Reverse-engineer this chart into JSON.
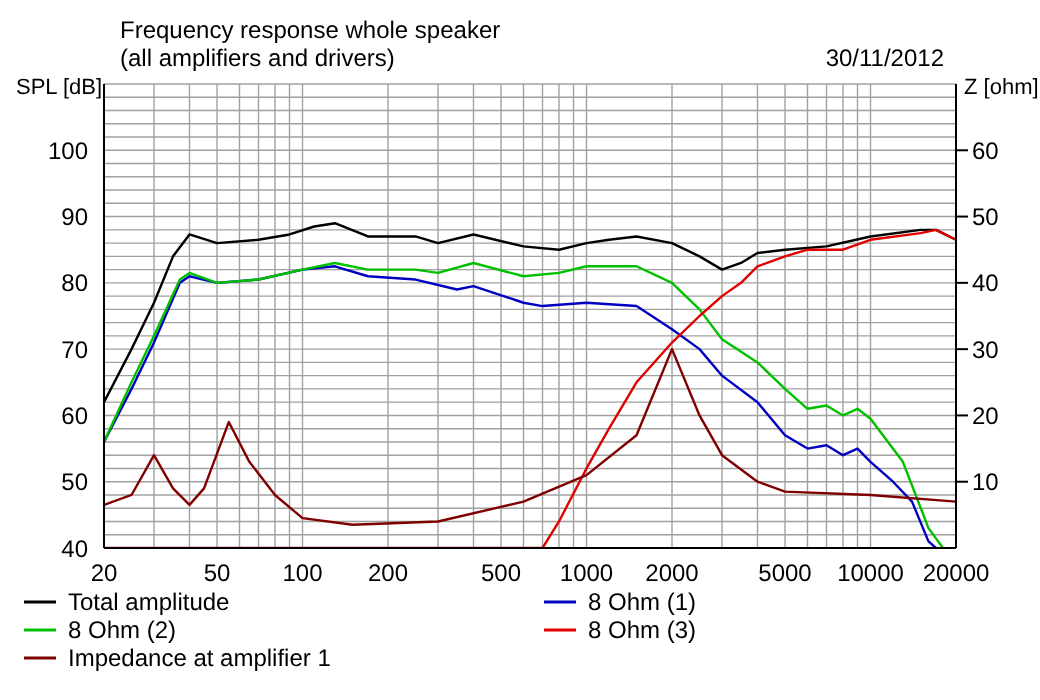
{
  "chart_data": {
    "type": "line",
    "title": "Frequency response whole speaker",
    "subtitle": "(all amplifiers and drivers)",
    "annotations": [
      "30/11/2012"
    ],
    "ylabel": "SPL [dB]",
    "y2label": "Z [ohm]",
    "log": "x",
    "grid": true,
    "legend": "bottom",
    "marker": "none",
    "line_style": "solid",
    "xlim": [
      20,
      20000
    ],
    "xticks": [
      20,
      {
        "value": 30,
        "label": null
      },
      {
        "value": 40,
        "label": null
      },
      50,
      {
        "value": 60,
        "label": null
      },
      {
        "value": 70,
        "label": null
      },
      {
        "value": 80,
        "label": null
      },
      {
        "value": 90,
        "label": null
      },
      100,
      200,
      {
        "value": 300,
        "label": null
      },
      {
        "value": 400,
        "label": null
      },
      500,
      {
        "value": 600,
        "label": null
      },
      {
        "value": 700,
        "label": null
      },
      {
        "value": 800,
        "label": null
      },
      {
        "value": 900,
        "label": null
      },
      1000,
      2000,
      {
        "value": 3000,
        "label": null
      },
      {
        "value": 4000,
        "label": null
      },
      5000,
      {
        "value": 6000,
        "label": null
      },
      {
        "value": 7000,
        "label": null
      },
      {
        "value": 8000,
        "label": null
      },
      {
        "value": 9000,
        "label": null
      },
      10000,
      20000
    ],
    "ylim": [
      40,
      110
    ],
    "yticks": [
      40,
      {
        "value": 42,
        "label": null
      },
      {
        "value": 44,
        "label": null
      },
      {
        "value": 46,
        "label": null
      },
      {
        "value": 48,
        "label": null
      },
      50,
      {
        "value": 52,
        "label": null
      },
      {
        "value": 54,
        "label": null
      },
      {
        "value": 56,
        "label": null
      },
      {
        "value": 58,
        "label": null
      },
      60,
      {
        "value": 62,
        "label": null
      },
      {
        "value": 64,
        "label": null
      },
      {
        "value": 66,
        "label": null
      },
      {
        "value": 68,
        "label": null
      },
      70,
      {
        "value": 72,
        "label": null
      },
      {
        "value": 74,
        "label": null
      },
      {
        "value": 76,
        "label": null
      },
      {
        "value": 78,
        "label": null
      },
      80,
      {
        "value": 82,
        "label": null
      },
      {
        "value": 84,
        "label": null
      },
      {
        "value": 86,
        "label": null
      },
      {
        "value": 88,
        "label": null
      },
      90,
      {
        "value": 92,
        "label": null
      },
      {
        "value": 94,
        "label": null
      },
      {
        "value": 96,
        "label": null
      },
      {
        "value": 98,
        "label": null
      },
      100,
      {
        "value": 102,
        "label": null
      },
      {
        "value": 104,
        "label": null
      },
      {
        "value": 106,
        "label": null
      },
      {
        "value": 108,
        "label": null
      },
      {
        "value": 110,
        "label": null
      }
    ],
    "y2lim": [
      0,
      70
    ],
    "y2ticks": [
      10,
      20,
      30,
      40,
      50,
      60
    ],
    "series": [
      {
        "name": "Total amplitude",
        "color": "#000000",
        "x": [
          20,
          25,
          30,
          35,
          40,
          50,
          70,
          90,
          110,
          130,
          170,
          250,
          300,
          400,
          600,
          800,
          1000,
          1200,
          1500,
          2000,
          2500,
          3000,
          3500,
          4000,
          5000,
          7000,
          10000,
          15000,
          17000,
          20000
        ],
        "values": [
          62,
          70,
          77,
          84,
          87.3,
          86,
          86.5,
          87.3,
          88.5,
          89,
          87,
          87,
          86,
          87.3,
          85.5,
          85,
          86,
          86.5,
          87,
          86,
          84,
          82,
          83,
          84.5,
          85,
          85.5,
          87,
          88,
          88,
          86.5
        ]
      },
      {
        "name": "8 Ohm (1)",
        "color": "#0000c0",
        "x": [
          20,
          25,
          30,
          37,
          40,
          50,
          70,
          100,
          130,
          170,
          250,
          350,
          400,
          600,
          700,
          1000,
          1500,
          2000,
          2500,
          3000,
          4000,
          5000,
          6000,
          7000,
          8000,
          9000,
          10000,
          12000,
          14000,
          16000,
          17000
        ],
        "values": [
          56,
          64,
          71,
          80,
          81,
          80,
          80.5,
          82,
          82.5,
          81,
          80.5,
          79,
          79.5,
          77,
          76.5,
          77,
          76.5,
          73,
          70,
          66,
          62,
          57,
          55,
          55.5,
          54,
          55,
          53,
          50,
          47,
          41,
          40
        ]
      },
      {
        "name": "8 Ohm (2)",
        "color": "#00c000",
        "x": [
          20,
          25,
          30,
          37,
          40,
          50,
          70,
          100,
          130,
          170,
          250,
          300,
          400,
          600,
          800,
          1000,
          1500,
          2000,
          2500,
          3000,
          4000,
          5000,
          6000,
          7000,
          8000,
          9000,
          10000,
          13000,
          16000,
          18000
        ],
        "values": [
          56,
          65,
          72,
          80.5,
          81.5,
          80,
          80.5,
          82,
          83,
          82,
          82,
          81.5,
          83,
          81,
          81.5,
          82.5,
          82.5,
          80,
          76,
          71.5,
          68,
          64,
          61,
          61.5,
          60,
          61,
          59.5,
          53,
          43,
          40
        ]
      },
      {
        "name": "8 Ohm (3)",
        "color": "#e00000",
        "x": [
          20,
          700,
          800,
          1000,
          1200,
          1500,
          2000,
          2500,
          3000,
          3500,
          4000,
          5000,
          6000,
          8000,
          10000,
          15000,
          17000,
          20000
        ],
        "values": [
          40,
          40,
          44,
          52,
          58,
          65,
          71,
          75,
          78,
          80,
          82.5,
          84,
          85,
          85,
          86.5,
          87.5,
          88,
          86.5
        ]
      },
      {
        "name": "Impedance at amplifier 1",
        "color": "#800000",
        "axis": "y2",
        "x": [
          20,
          25,
          30,
          35,
          40,
          45,
          55,
          65,
          80,
          100,
          150,
          300,
          600,
          1000,
          1500,
          2000,
          2500,
          3000,
          4000,
          5000,
          10000,
          20000
        ],
        "values": [
          6.5,
          8,
          14,
          9,
          6.5,
          9,
          19,
          13,
          8,
          4.5,
          3.5,
          4,
          7,
          11,
          17,
          30,
          20,
          14,
          10,
          8.5,
          8,
          7
        ]
      }
    ]
  }
}
